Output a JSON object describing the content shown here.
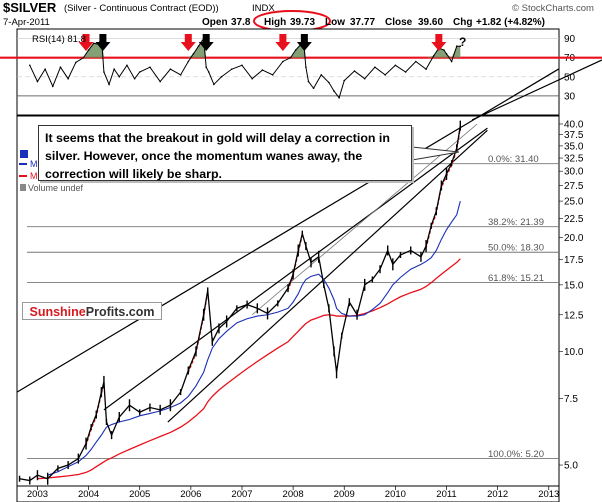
{
  "header": {
    "symbol": "$SILVER",
    "name": "(Silver - Continuous Contract (EOD))",
    "exchange": "INDX",
    "watermark": "© StockCharts.com",
    "date": "7-Apr-2011",
    "open_label": "Open",
    "open_value": "37.8",
    "high_label": "High",
    "high_value": "39.73",
    "low_label": "Low",
    "low_value": "37.77",
    "close_label": "Close",
    "close_value": "39.60",
    "chg_label": "Chg",
    "chg_value": "+1.82 (+4.82%)"
  },
  "rsi_label": "RSI(14) 81.8",
  "legend": {
    "item1": "M",
    "item2": "M",
    "item3": "Volume undef"
  },
  "callout_text": "It seems that the breakout in gold will delay a correction in silver. However, once the momentum wanes away, the correction will likely be sharp.",
  "logo": {
    "part1": "Sunshine",
    "part2": "Profits.com"
  },
  "question_mark": "?",
  "fib_levels": [
    {
      "label": "0.0%: 31.40",
      "price": 31.4
    },
    {
      "label": "38.2%: 21.39",
      "price": 21.39
    },
    {
      "label": "50.0%: 18.30",
      "price": 18.3
    },
    {
      "label": "61.8%: 15.21",
      "price": 15.21
    },
    {
      "label": "100.0%: 5.20",
      "price": 5.2
    }
  ],
  "colors": {
    "price": "#000000",
    "ma_red": "#e8101c",
    "ma_blue": "#1a2fb8",
    "arrow_red": "#e8101c",
    "arrow_black": "#000000",
    "rsi_level": "#e8101c",
    "rsi_fill": "#6f8f5f",
    "grid": "#c8c8c8"
  },
  "chart_data": [
    {
      "type": "line",
      "title": "RSI(14)",
      "ylim": [
        0,
        100
      ],
      "yticks": [
        "90",
        "70",
        "50",
        "30"
      ],
      "reference_levels": [
        70,
        30
      ],
      "x": [
        2002.85,
        2003.0,
        2003.15,
        2003.3,
        2003.45,
        2003.6,
        2003.75,
        2003.9,
        2004.0,
        2004.1,
        2004.2,
        2004.25,
        2004.3,
        2004.4,
        2004.5,
        2004.6,
        2004.75,
        2004.9,
        2005.0,
        2005.2,
        2005.4,
        2005.6,
        2005.8,
        2005.95,
        2006.05,
        2006.15,
        2006.25,
        2006.3,
        2006.35,
        2006.45,
        2006.6,
        2006.8,
        2007.0,
        2007.2,
        2007.4,
        2007.6,
        2007.8,
        2007.95,
        2008.05,
        2008.15,
        2008.2,
        2008.25,
        2008.3,
        2008.4,
        2008.55,
        2008.7,
        2008.8,
        2008.9,
        2009.0,
        2009.2,
        2009.4,
        2009.6,
        2009.8,
        2010.0,
        2010.2,
        2010.4,
        2010.6,
        2010.75,
        2010.85,
        2010.95,
        2011.0,
        2011.1,
        2011.2,
        2011.27
      ],
      "series": [
        {
          "name": "RSI(14)",
          "values": [
            62,
            45,
            58,
            40,
            60,
            48,
            65,
            70,
            78,
            85,
            84,
            92,
            55,
            42,
            58,
            50,
            62,
            48,
            55,
            60,
            45,
            58,
            52,
            66,
            74,
            82,
            90,
            60,
            55,
            42,
            50,
            58,
            62,
            48,
            57,
            52,
            66,
            70,
            78,
            84,
            90,
            60,
            45,
            38,
            52,
            44,
            35,
            28,
            46,
            56,
            48,
            60,
            52,
            62,
            55,
            66,
            58,
            72,
            80,
            78,
            74,
            66,
            82,
            82
          ]
        }
      ],
      "arrows": [
        {
          "x": 2003.95,
          "color": "red"
        },
        {
          "x": 2004.28,
          "color": "black"
        },
        {
          "x": 2005.95,
          "color": "red"
        },
        {
          "x": 2006.3,
          "color": "black"
        },
        {
          "x": 2007.8,
          "color": "red"
        },
        {
          "x": 2008.22,
          "color": "black"
        },
        {
          "x": 2010.85,
          "color": "red"
        }
      ]
    },
    {
      "type": "line",
      "title": "$SILVER (Silver - Continuous Contract (EOD)) INDX",
      "xlabel": "",
      "ylabel": "",
      "yscale": "log",
      "ylim": [
        4.4,
        42
      ],
      "yticks": [
        "40.0",
        "37.5",
        "35.0",
        "32.5",
        "30.0",
        "27.5",
        "25.0",
        "22.5",
        "20.0",
        "17.5",
        "15.0",
        "12.5",
        "10.0",
        "7.5",
        "5.0"
      ],
      "xlim": [
        2002.6,
        2013.2
      ],
      "xticks": [
        "2003",
        "2004",
        "2005",
        "2006",
        "2007",
        "2008",
        "2009",
        "2010",
        "2011",
        "2012",
        "2013"
      ],
      "x": [
        2002.65,
        2002.85,
        2003.0,
        2003.2,
        2003.4,
        2003.6,
        2003.8,
        2003.95,
        2004.05,
        2004.15,
        2004.25,
        2004.3,
        2004.35,
        2004.45,
        2004.6,
        2004.8,
        2005.0,
        2005.2,
        2005.4,
        2005.6,
        2005.8,
        2005.95,
        2006.1,
        2006.25,
        2006.33,
        2006.42,
        2006.55,
        2006.7,
        2006.9,
        2007.1,
        2007.3,
        2007.5,
        2007.7,
        2007.9,
        2008.0,
        2008.1,
        2008.18,
        2008.25,
        2008.35,
        2008.5,
        2008.6,
        2008.7,
        2008.8,
        2008.85,
        2008.95,
        2009.1,
        2009.25,
        2009.4,
        2009.55,
        2009.7,
        2009.85,
        2009.95,
        2010.1,
        2010.3,
        2010.5,
        2010.6,
        2010.7,
        2010.8,
        2010.9,
        2011.0,
        2011.1,
        2011.2,
        2011.27
      ],
      "series": [
        {
          "name": "Price",
          "values": [
            4.6,
            4.55,
            4.7,
            4.6,
            4.9,
            5.0,
            5.2,
            5.7,
            6.3,
            6.8,
            7.8,
            8.3,
            6.5,
            6.0,
            6.7,
            7.2,
            6.9,
            7.1,
            7.0,
            7.2,
            7.8,
            8.9,
            10.0,
            12.5,
            14.5,
            10.6,
            11.5,
            12.0,
            13.0,
            13.3,
            13.0,
            12.6,
            13.4,
            14.7,
            16.0,
            18.5,
            20.5,
            19.0,
            17.2,
            17.8,
            15.0,
            13.0,
            10.0,
            8.8,
            11.0,
            13.5,
            12.5,
            15.0,
            15.5,
            16.5,
            18.5,
            17.0,
            18.0,
            18.5,
            17.8,
            19.0,
            21.5,
            23.5,
            27.5,
            29.5,
            31.5,
            34.5,
            39.6
          ]
        },
        {
          "name": "MA Red",
          "values": [
            null,
            null,
            4.6,
            4.62,
            4.65,
            4.68,
            4.72,
            4.78,
            4.85,
            4.95,
            5.05,
            5.1,
            5.15,
            5.22,
            5.35,
            5.5,
            5.65,
            5.8,
            5.95,
            6.1,
            6.3,
            6.5,
            6.75,
            7.05,
            7.35,
            7.6,
            7.9,
            8.2,
            8.6,
            9.0,
            9.4,
            9.8,
            10.2,
            10.6,
            10.95,
            11.3,
            11.6,
            11.85,
            12.1,
            12.3,
            12.45,
            12.5,
            12.45,
            12.4,
            12.4,
            12.4,
            12.45,
            12.6,
            12.8,
            13.05,
            13.35,
            13.6,
            13.95,
            14.3,
            14.6,
            14.85,
            15.2,
            15.6,
            16.0,
            16.4,
            16.8,
            17.2,
            17.6
          ]
        },
        {
          "name": "MA Blue",
          "values": [
            null,
            null,
            null,
            4.7,
            4.8,
            4.95,
            5.1,
            5.3,
            5.5,
            5.75,
            6.0,
            6.15,
            6.3,
            6.4,
            6.5,
            6.6,
            6.75,
            6.85,
            6.95,
            7.1,
            7.3,
            7.6,
            8.1,
            8.8,
            9.5,
            10.2,
            10.8,
            11.3,
            11.9,
            12.2,
            12.4,
            12.5,
            12.7,
            13.0,
            13.5,
            14.2,
            15.0,
            15.5,
            15.8,
            16.0,
            15.5,
            14.7,
            13.7,
            13.0,
            12.6,
            12.4,
            12.4,
            12.5,
            12.9,
            13.4,
            14.3,
            15.0,
            15.7,
            16.5,
            17.0,
            17.3,
            17.7,
            18.5,
            19.8,
            21.0,
            22.0,
            23.0,
            25.0
          ]
        }
      ],
      "trendlines": [
        {
          "name": "upper channel 1",
          "x": [
            2002.6,
            2013.2
          ],
          "y": [
            7.8,
            56
          ]
        },
        {
          "name": "upper channel 2",
          "x": [
            2004.3,
            2011.8
          ],
          "y": [
            7.0,
            39.0
          ]
        },
        {
          "name": "lower channel",
          "x": [
            2005.55,
            2011.8
          ],
          "y": [
            6.5,
            38.5
          ]
        },
        {
          "name": "thin support",
          "x": [
            2007.2,
            2011.6
          ],
          "y": [
            12.5,
            40.0
          ]
        }
      ]
    }
  ]
}
